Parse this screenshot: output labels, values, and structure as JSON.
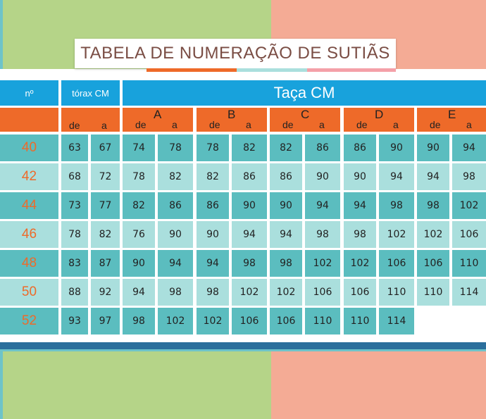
{
  "title": "TABELA DE NUMERAÇÃO DE SUTIÃS",
  "header": {
    "num_label": "nº",
    "torax_label": "tórax CM",
    "taca_label": "Taça CM",
    "de": "de",
    "a": "a",
    "cups": [
      "A",
      "B",
      "C",
      "D",
      "E"
    ]
  },
  "rows": [
    {
      "num": "40",
      "torax": [
        "63",
        "67"
      ],
      "cups": [
        [
          "74",
          "78"
        ],
        [
          "78",
          "82"
        ],
        [
          "82",
          "86"
        ],
        [
          "86",
          "90"
        ],
        [
          "90",
          "94"
        ]
      ]
    },
    {
      "num": "42",
      "torax": [
        "68",
        "72"
      ],
      "cups": [
        [
          "78",
          "82"
        ],
        [
          "82",
          "86"
        ],
        [
          "86",
          "90"
        ],
        [
          "90",
          "94"
        ],
        [
          "94",
          "98"
        ]
      ]
    },
    {
      "num": "44",
      "torax": [
        "73",
        "77"
      ],
      "cups": [
        [
          "82",
          "86"
        ],
        [
          "86",
          "90"
        ],
        [
          "90",
          "94"
        ],
        [
          "94",
          "98"
        ],
        [
          "98",
          "102"
        ]
      ]
    },
    {
      "num": "46",
      "torax": [
        "78",
        "82"
      ],
      "cups": [
        [
          "76",
          "90"
        ],
        [
          "90",
          "94"
        ],
        [
          "94",
          "98"
        ],
        [
          "98",
          "102"
        ],
        [
          "102",
          "106"
        ]
      ]
    },
    {
      "num": "48",
      "torax": [
        "83",
        "87"
      ],
      "cups": [
        [
          "90",
          "94"
        ],
        [
          "94",
          "98"
        ],
        [
          "98",
          "102"
        ],
        [
          "102",
          "106"
        ],
        [
          "106",
          "110"
        ]
      ]
    },
    {
      "num": "50",
      "torax": [
        "88",
        "92"
      ],
      "cups": [
        [
          "94",
          "98"
        ],
        [
          "98",
          "102"
        ],
        [
          "102",
          "106"
        ],
        [
          "106",
          "110"
        ],
        [
          "110",
          "114"
        ]
      ]
    },
    {
      "num": "52",
      "torax": [
        "93",
        "97"
      ],
      "cups": [
        [
          "98",
          "102"
        ],
        [
          "102",
          "106"
        ],
        [
          "106",
          "110"
        ],
        [
          "110",
          "114"
        ]
      ]
    }
  ],
  "colors": {
    "header_blue": "#18a2dc",
    "header_orange": "#ee6a29",
    "row_dark": "#5bbdbf",
    "row_light": "#aadfdd",
    "size_text": "#ee6a29",
    "title_text": "#7a4d44"
  }
}
